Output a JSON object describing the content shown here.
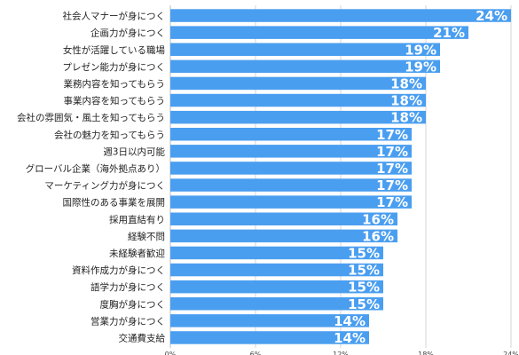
{
  "chart_data": {
    "type": "bar",
    "orientation": "horizontal",
    "categories": [
      "社会人マナーが身につく",
      "企画力が身につく",
      "女性が活躍している職場",
      "プレゼン能力が身につく",
      "業務内容を知ってもらう",
      "事業内容を知ってもらう",
      "会社の雰囲気・風土を知ってもらう",
      "会社の魅力を知ってもらう",
      "週3日以内可能",
      "グローバル企業（海外拠点あり）",
      "マーケティング力が身につく",
      "国際性のある事業を展開",
      "採用直結有り",
      "経験不問",
      "未経験者歓迎",
      "資料作成力が身につく",
      "語学力が身につく",
      "度胸が身につく",
      "営業力が身につく",
      "交通費支給"
    ],
    "values": [
      24,
      21,
      19,
      19,
      18,
      18,
      18,
      17,
      17,
      17,
      17,
      17,
      16,
      16,
      15,
      15,
      15,
      15,
      14,
      14
    ],
    "value_labels": [
      "24%",
      "21%",
      "19%",
      "19%",
      "18%",
      "18%",
      "18%",
      "17%",
      "17%",
      "17%",
      "17%",
      "17%",
      "16%",
      "16%",
      "15%",
      "15%",
      "15%",
      "15%",
      "14%",
      "14%"
    ],
    "xlim": [
      0,
      24
    ],
    "x_ticks": [
      0,
      6,
      12,
      18,
      24
    ],
    "x_tick_labels": [
      "0%",
      "6%",
      "12%",
      "18%",
      "24%"
    ],
    "grid": true,
    "bar_color": "#4a9ef0"
  }
}
